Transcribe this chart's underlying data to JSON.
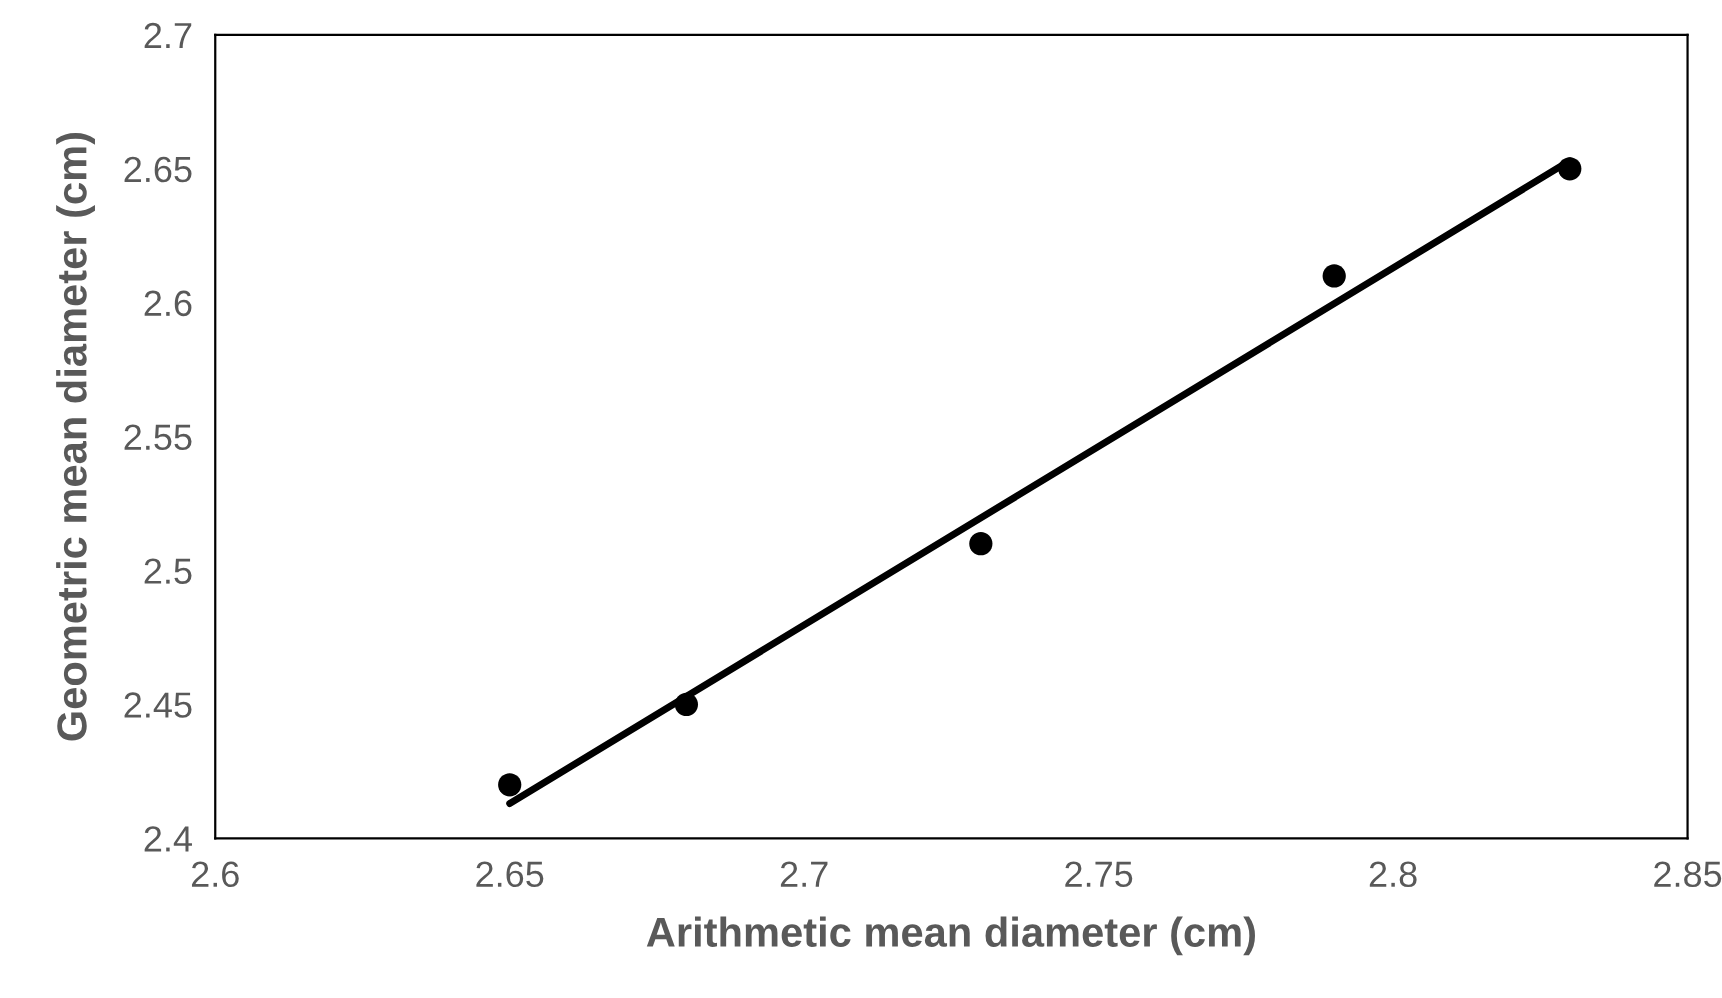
{
  "chart_data": {
    "type": "scatter",
    "xlabel": "Arithmetic mean diameter (cm)",
    "ylabel": "Geometric mean diameter (cm)",
    "series": [
      {
        "color": "#000000",
        "x": [
          2.65,
          2.68,
          2.73,
          2.79,
          2.83
        ],
        "values": [
          2.42,
          2.45,
          2.51,
          2.61,
          2.65
        ],
        "marker": "circle"
      },
      {
        "type": "line",
        "color": "#000000",
        "x": [
          2.65,
          2.83
        ],
        "values": [
          2.413,
          2.653
        ],
        "marker": "none",
        "line_style": "solid"
      }
    ],
    "xlim": [
      2.6,
      2.85
    ],
    "xticks": [
      2.6,
      2.65,
      2.7,
      2.75,
      2.8,
      2.85
    ],
    "ylim": [
      2.4,
      2.7
    ],
    "yticks": [
      2.4,
      2.45,
      2.5,
      2.55,
      2.6,
      2.65,
      2.7
    ],
    "grid": false,
    "legend": false
  }
}
